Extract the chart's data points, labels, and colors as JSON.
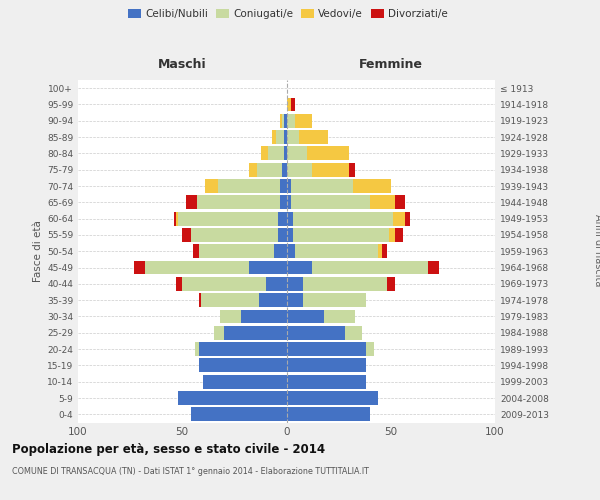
{
  "age_groups": [
    "0-4",
    "5-9",
    "10-14",
    "15-19",
    "20-24",
    "25-29",
    "30-34",
    "35-39",
    "40-44",
    "45-49",
    "50-54",
    "55-59",
    "60-64",
    "65-69",
    "70-74",
    "75-79",
    "80-84",
    "85-89",
    "90-94",
    "95-99",
    "100+"
  ],
  "birth_years": [
    "2009-2013",
    "2004-2008",
    "1999-2003",
    "1994-1998",
    "1989-1993",
    "1984-1988",
    "1979-1983",
    "1974-1978",
    "1969-1973",
    "1964-1968",
    "1959-1963",
    "1954-1958",
    "1949-1953",
    "1944-1948",
    "1939-1943",
    "1934-1938",
    "1929-1933",
    "1924-1928",
    "1919-1923",
    "1914-1918",
    "≤ 1913"
  ],
  "males": {
    "celibi": [
      46,
      52,
      40,
      42,
      42,
      30,
      22,
      13,
      10,
      18,
      6,
      4,
      4,
      3,
      3,
      2,
      1,
      1,
      1,
      0,
      0
    ],
    "coniugati": [
      0,
      0,
      0,
      0,
      2,
      5,
      10,
      28,
      40,
      50,
      36,
      42,
      48,
      40,
      30,
      12,
      8,
      4,
      1,
      0,
      0
    ],
    "vedovi": [
      0,
      0,
      0,
      0,
      0,
      0,
      0,
      0,
      0,
      0,
      0,
      0,
      1,
      0,
      6,
      4,
      3,
      2,
      1,
      0,
      0
    ],
    "divorziati": [
      0,
      0,
      0,
      0,
      0,
      0,
      0,
      1,
      3,
      5,
      3,
      4,
      1,
      5,
      0,
      0,
      0,
      0,
      0,
      0,
      0
    ]
  },
  "females": {
    "nubili": [
      40,
      44,
      38,
      38,
      38,
      28,
      18,
      8,
      8,
      12,
      4,
      3,
      3,
      2,
      2,
      0,
      0,
      0,
      0,
      0,
      0
    ],
    "coniugate": [
      0,
      0,
      0,
      0,
      4,
      8,
      15,
      30,
      40,
      56,
      40,
      46,
      48,
      38,
      30,
      12,
      10,
      6,
      4,
      0,
      0
    ],
    "vedove": [
      0,
      0,
      0,
      0,
      0,
      0,
      0,
      0,
      0,
      0,
      2,
      3,
      6,
      12,
      18,
      18,
      20,
      14,
      8,
      2,
      0
    ],
    "divorziate": [
      0,
      0,
      0,
      0,
      0,
      0,
      0,
      0,
      4,
      5,
      2,
      4,
      2,
      5,
      0,
      3,
      0,
      0,
      0,
      2,
      0
    ]
  },
  "colors": {
    "celibi": "#4472C4",
    "coniugati": "#c8daa0",
    "vedovi": "#F5C842",
    "divorziati": "#CC1111"
  },
  "title": "Popolazione per età, sesso e stato civile - 2014",
  "subtitle": "COMUNE DI TRANSACQUA (TN) - Dati ISTAT 1° gennaio 2014 - Elaborazione TUTTITALIA.IT",
  "xlabel_left": "Maschi",
  "xlabel_right": "Femmine",
  "ylabel_left": "Fasce di età",
  "ylabel_right": "Anni di nascita",
  "xlim": 100,
  "bg_color": "#efefef",
  "plot_bg": "#ffffff",
  "grid_color": "#cccccc"
}
